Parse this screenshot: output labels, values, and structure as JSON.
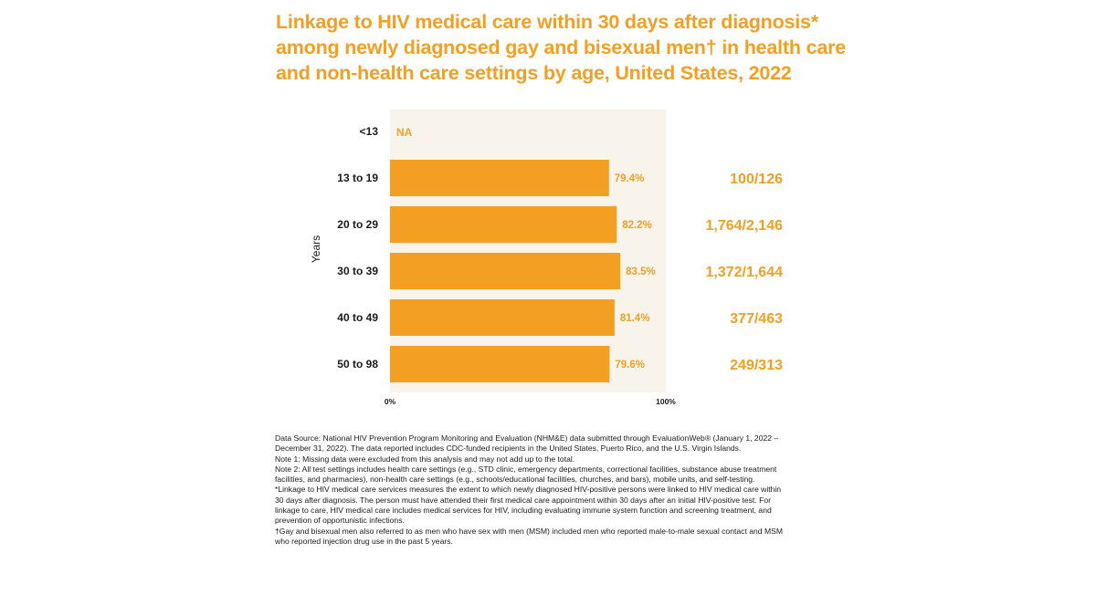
{
  "title": {
    "line1": "Linkage to HIV medical care within 30 days after diagnosis*",
    "line2": "among newly diagnosed gay and bisexual men† in health care",
    "line3": "and non-health care settings by age, United States, 2022"
  },
  "colors": {
    "accent": "#F29F22",
    "track": "#F8F4EC",
    "text": "#1a1a1a"
  },
  "chart_data": {
    "type": "bar",
    "orientation": "horizontal",
    "ylabel": "Years",
    "xlim": [
      0,
      100
    ],
    "x_ticks": [
      "0%",
      "100%"
    ],
    "categories": [
      "<13",
      "13 to 19",
      "20 to 29",
      "30 to 39",
      "40 to 49",
      "50 to 98"
    ],
    "values": [
      null,
      79.4,
      82.2,
      83.5,
      81.4,
      79.6
    ],
    "value_labels": [
      "NA",
      "79.4%",
      "82.2%",
      "83.5%",
      "81.4%",
      "79.6%"
    ],
    "ratios": [
      "",
      "100/126",
      "1,764/2,146",
      "1,372/1,644",
      "377/463",
      "249/313"
    ]
  },
  "notes": [
    "Data Source: National HIV Prevention Program Monitoring and Evaluation (NHM&E) data submitted through EvaluationWeb® (January 1, 2022 – December 31, 2022). The data reported includes CDC-funded recipients in the United States, Puerto Rico, and the U.S. Virgin Islands.",
    "Note 1: Missing data were excluded from this analysis and may not add up to the total.",
    "Note 2: All test settings includes health care settings (e.g., STD clinic, emergency departments, correctional facilities, substance abuse treatment facilities, and pharmacies), non-health care settings (e.g., schools/educational facilities, churches, and bars), mobile units, and self-testing.",
    "*Linkage to HIV medical care services measures the extent to which newly diagnosed HIV-positive persons were linked to HIV medical care within 30 days after diagnosis. The person must have attended their first medical care appointment within 30 days after an initial HIV-positive test. For linkage to care, HIV medical care includes medical services for HIV, including evaluating immune system function and screening treatment, and prevention of opportunistic infections.",
    "†Gay and bisexual men also referred to as men who have sex with men (MSM) included men who reported male-to-male sexual contact and MSM who reported injection drug use in the past 5 years."
  ]
}
